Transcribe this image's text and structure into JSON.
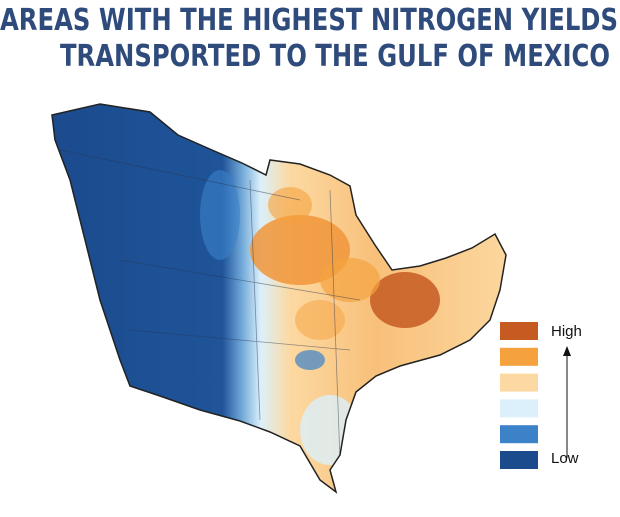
{
  "title": {
    "line1": "AREAS WITH THE HIGHEST NITROGEN YIELDS",
    "line2": "TRANSPORTED TO THE GULF OF MEXICO"
  },
  "legend": {
    "high": "High",
    "low": "Low",
    "colors": [
      "#c65b22",
      "#f5a23e",
      "#fcd9a2",
      "#dcf0fb",
      "#3b82c9",
      "#1b4a8d"
    ]
  }
}
